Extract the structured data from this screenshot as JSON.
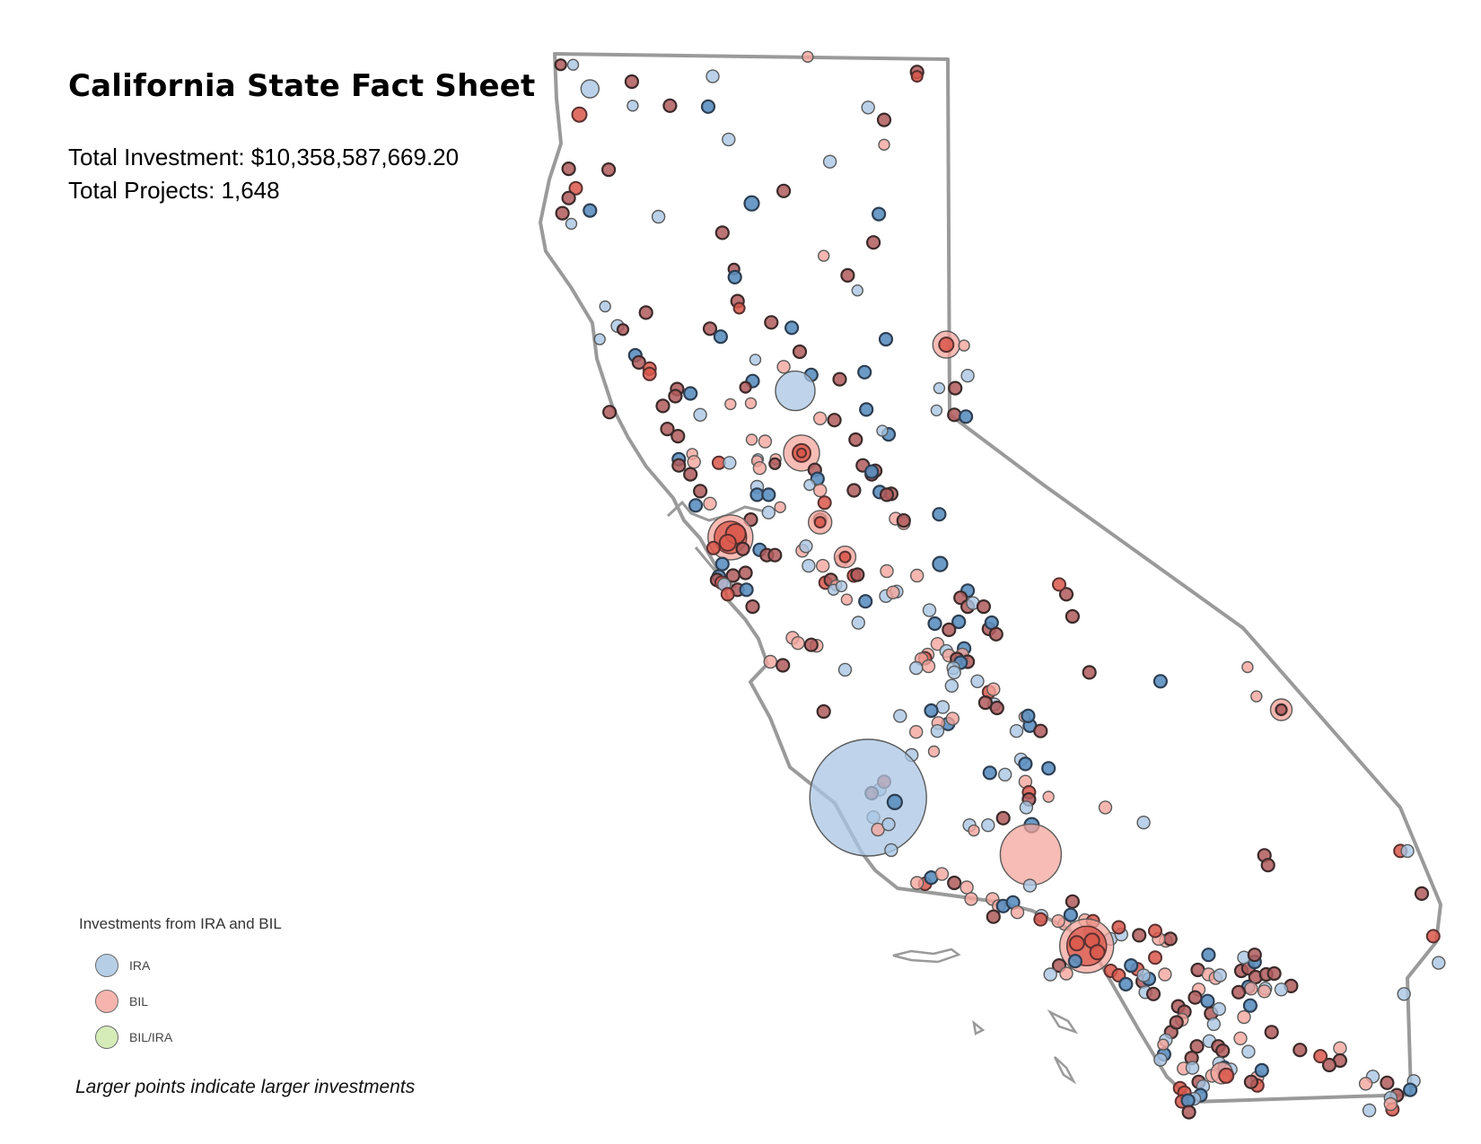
{
  "header": {
    "title": "California State Fact Sheet",
    "total_investment": "Total Investment: $10,358,587,669.20",
    "total_projects": "Total Projects: 1,648"
  },
  "legend": {
    "title": "Investments from IRA and BIL",
    "items": [
      {
        "label": "IRA",
        "color": "#b7cfe6"
      },
      {
        "label": "BIL",
        "color": "#f7b4ae"
      },
      {
        "label": "BIL/IRA",
        "color": "#d5ecb9"
      }
    ]
  },
  "note": "Larger points indicate larger investments",
  "colors": {
    "ira_fill": "#a9c6e3",
    "ira_dark": "#5b8fc0",
    "bil_fill": "#f4a59c",
    "bil_dark": "#d9574a",
    "mixed_dark": "#b05a5c",
    "outline": "#9a9a9a",
    "point_stroke": "#5a5a5a"
  }
}
